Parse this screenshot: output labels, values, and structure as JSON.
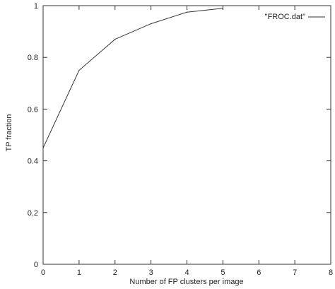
{
  "chart_data": {
    "type": "line",
    "xlabel": "Number of FP clusters per image",
    "ylabel": "TP fraction",
    "xlim": [
      0,
      8
    ],
    "ylim": [
      0,
      1
    ],
    "x_ticks": [
      "0",
      "1",
      "2",
      "3",
      "4",
      "5",
      "6",
      "7",
      "8"
    ],
    "y_ticks": [
      "0",
      "0.2",
      "0.4",
      "0.6",
      "0.8",
      "1"
    ],
    "grid": false,
    "legend_position": "top-right",
    "line_color": "#333333",
    "series": [
      {
        "name": "\"FROC.dat\"",
        "x": [
          0,
          1,
          2,
          3,
          4,
          5
        ],
        "y": [
          0.45,
          0.75,
          0.87,
          0.93,
          0.975,
          0.99
        ]
      }
    ]
  }
}
